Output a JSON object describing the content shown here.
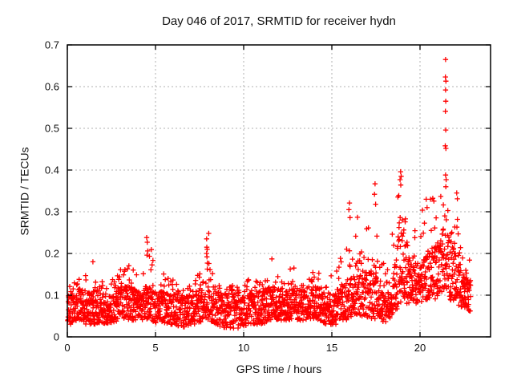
{
  "chart_data": {
    "type": "scatter",
    "title": "Day 046 of 2017, SRMTID for receiver hydn",
    "xlabel": "GPS time / hours",
    "ylabel": "SRMTID / TECUs",
    "xlim": [
      0,
      24
    ],
    "ylim": [
      0,
      0.7
    ],
    "xticks": [
      0,
      5,
      10,
      15,
      20
    ],
    "xticklabels": [
      "0",
      "5",
      "10",
      "15",
      "20"
    ],
    "yticks": [
      0,
      0.1,
      0.2,
      0.3,
      0.4,
      0.5,
      0.6,
      0.7
    ],
    "yticklabels": [
      "0",
      "0.1",
      "0.2",
      "0.3",
      "0.4",
      "0.5",
      "0.6",
      "0.7"
    ],
    "grid": "dotted",
    "legend": "none",
    "marker": "plus",
    "marker_color": "#ff0000",
    "grid_color": "#b0b0b0",
    "axis_color": "#000000",
    "background": "#ffffff",
    "data_extent_hours": [
      0.02,
      22.88
    ],
    "n_points": 2350,
    "seed": 20170046,
    "band_profile": [
      [
        0.0,
        0.03,
        0.1,
        0.13
      ],
      [
        0.8,
        0.03,
        0.11,
        0.14
      ],
      [
        1.5,
        0.03,
        0.11,
        0.18
      ],
      [
        2.2,
        0.03,
        0.1,
        0.14
      ],
      [
        3.0,
        0.04,
        0.12,
        0.19
      ],
      [
        3.6,
        0.04,
        0.12,
        0.17
      ],
      [
        4.2,
        0.04,
        0.1,
        0.14
      ],
      [
        4.7,
        0.04,
        0.12,
        0.22
      ],
      [
        5.2,
        0.03,
        0.11,
        0.16
      ],
      [
        6.0,
        0.03,
        0.1,
        0.14
      ],
      [
        6.6,
        0.02,
        0.09,
        0.12
      ],
      [
        7.2,
        0.03,
        0.1,
        0.13
      ],
      [
        7.9,
        0.04,
        0.11,
        0.2
      ],
      [
        8.4,
        0.03,
        0.11,
        0.15
      ],
      [
        9.0,
        0.02,
        0.1,
        0.13
      ],
      [
        9.7,
        0.02,
        0.09,
        0.12
      ],
      [
        10.3,
        0.03,
        0.1,
        0.14
      ],
      [
        11.0,
        0.03,
        0.11,
        0.14
      ],
      [
        11.6,
        0.04,
        0.12,
        0.18
      ],
      [
        12.1,
        0.04,
        0.1,
        0.14
      ],
      [
        12.8,
        0.04,
        0.12,
        0.17
      ],
      [
        13.4,
        0.04,
        0.11,
        0.14
      ],
      [
        14.0,
        0.04,
        0.12,
        0.16
      ],
      [
        14.6,
        0.03,
        0.11,
        0.15
      ],
      [
        15.2,
        0.03,
        0.11,
        0.17
      ],
      [
        15.8,
        0.04,
        0.13,
        0.22
      ],
      [
        16.2,
        0.05,
        0.16,
        0.3
      ],
      [
        16.7,
        0.05,
        0.17,
        0.28
      ],
      [
        17.2,
        0.04,
        0.15,
        0.26
      ],
      [
        17.5,
        0.04,
        0.15,
        0.34
      ],
      [
        18.0,
        0.03,
        0.12,
        0.2
      ],
      [
        18.6,
        0.06,
        0.18,
        0.28
      ],
      [
        18.9,
        0.08,
        0.28,
        0.4
      ],
      [
        19.2,
        0.08,
        0.22,
        0.32
      ],
      [
        19.6,
        0.08,
        0.16,
        0.24
      ],
      [
        20.0,
        0.08,
        0.18,
        0.3
      ],
      [
        20.6,
        0.09,
        0.2,
        0.35
      ],
      [
        21.0,
        0.09,
        0.22,
        0.32
      ],
      [
        21.5,
        0.1,
        0.28,
        0.42
      ],
      [
        21.9,
        0.08,
        0.24,
        0.38
      ],
      [
        22.3,
        0.07,
        0.16,
        0.25
      ],
      [
        22.9,
        0.06,
        0.13,
        0.18
      ]
    ],
    "outliers": [
      [
        21.45,
        0.665
      ],
      [
        21.44,
        0.623
      ],
      [
        21.47,
        0.613
      ],
      [
        21.45,
        0.592
      ],
      [
        21.46,
        0.565
      ],
      [
        21.44,
        0.541
      ],
      [
        21.46,
        0.496
      ],
      [
        21.43,
        0.458
      ],
      [
        21.47,
        0.452
      ],
      [
        21.45,
        0.388
      ],
      [
        21.48,
        0.377
      ],
      [
        18.9,
        0.396
      ],
      [
        18.93,
        0.385
      ],
      [
        18.87,
        0.377
      ],
      [
        18.91,
        0.364
      ],
      [
        17.45,
        0.367
      ],
      [
        17.42,
        0.342
      ],
      [
        17.48,
        0.318
      ],
      [
        20.35,
        0.33
      ],
      [
        20.4,
        0.31
      ],
      [
        22.08,
        0.345
      ],
      [
        22.12,
        0.331
      ],
      [
        16.0,
        0.321
      ],
      [
        15.97,
        0.305
      ],
      [
        16.03,
        0.286
      ],
      [
        4.5,
        0.238
      ],
      [
        4.53,
        0.227
      ],
      [
        4.56,
        0.206
      ],
      [
        4.52,
        0.196
      ],
      [
        7.9,
        0.235
      ],
      [
        7.91,
        0.215
      ],
      [
        7.93,
        0.21
      ],
      [
        7.9,
        0.2
      ],
      [
        7.92,
        0.192
      ],
      [
        8.02,
        0.248
      ],
      [
        1.45,
        0.18
      ],
      [
        11.6,
        0.187
      ],
      [
        12.85,
        0.165
      ]
    ]
  }
}
